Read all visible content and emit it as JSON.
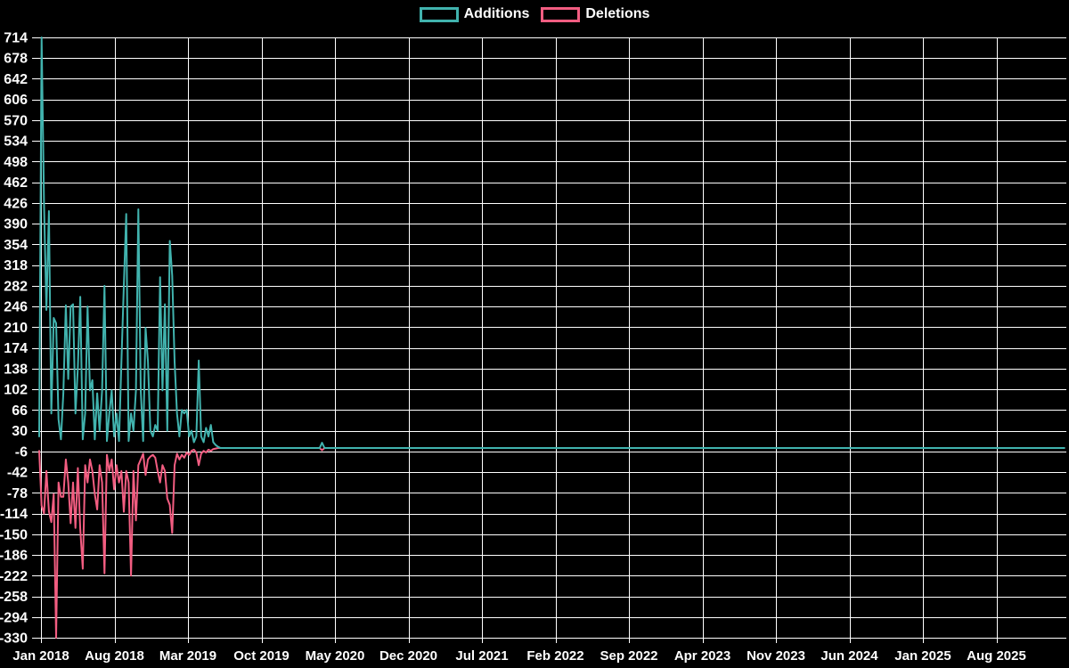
{
  "chart_data": {
    "type": "line",
    "title": "",
    "legend": [
      "Additions",
      "Deletions"
    ],
    "legend_position": "top-center",
    "background": "#000000",
    "grid": true,
    "colors": {
      "additions": "#41b3ae",
      "deletions": "#f25d81",
      "grid": "#ffffff",
      "text": "#ffffff"
    },
    "ylim": [
      -330,
      714
    ],
    "y_tick_step": 36,
    "y_ticks": [
      714,
      678,
      642,
      606,
      570,
      534,
      498,
      462,
      426,
      390,
      354,
      318,
      282,
      246,
      210,
      174,
      138,
      102,
      66,
      30,
      -6,
      -42,
      -78,
      -114,
      -150,
      -186,
      -222,
      -258,
      -294,
      -330
    ],
    "x_axis_unit": "weeks, starting early Jan 2018; ticks every 7 months",
    "x_ticks": [
      {
        "label": "Jan 2018",
        "month": 0
      },
      {
        "label": "Aug 2018",
        "month": 7
      },
      {
        "label": "Mar 2019",
        "month": 14
      },
      {
        "label": "Oct 2019",
        "month": 21
      },
      {
        "label": "May 2020",
        "month": 28
      },
      {
        "label": "Dec 2020",
        "month": 35
      },
      {
        "label": "Jul 2021",
        "month": 42
      },
      {
        "label": "Feb 2022",
        "month": 49
      },
      {
        "label": "Sep 2022",
        "month": 56
      },
      {
        "label": "Apr 2023",
        "month": 63
      },
      {
        "label": "Nov 2023",
        "month": 70
      },
      {
        "label": "Jun 2024",
        "month": 77
      },
      {
        "label": "Jan 2025",
        "month": 84
      },
      {
        "label": "Aug 2025",
        "month": 91
      }
    ],
    "series": [
      {
        "name": "Deletions",
        "color_key": "deletions",
        "points": [
          [
            0,
            -5
          ],
          [
            1,
            -100
          ],
          [
            2,
            -114
          ],
          [
            3,
            -40
          ],
          [
            4,
            -110
          ],
          [
            5,
            -129
          ],
          [
            6,
            -80
          ],
          [
            7,
            -330
          ],
          [
            8,
            -60
          ],
          [
            9,
            -85
          ],
          [
            10,
            -85
          ],
          [
            11,
            -20
          ],
          [
            12,
            -60
          ],
          [
            13,
            -131
          ],
          [
            14,
            -60
          ],
          [
            15,
            -139
          ],
          [
            16,
            -35
          ],
          [
            17,
            -141
          ],
          [
            18,
            -210
          ],
          [
            19,
            -30
          ],
          [
            20,
            -60
          ],
          [
            21,
            -20
          ],
          [
            22,
            -40
          ],
          [
            23,
            -80
          ],
          [
            24,
            -107
          ],
          [
            25,
            -30
          ],
          [
            26,
            -60
          ],
          [
            27,
            -218
          ],
          [
            28,
            -12
          ],
          [
            29,
            -40
          ],
          [
            30,
            -20
          ],
          [
            31,
            -72
          ],
          [
            32,
            -30
          ],
          [
            33,
            -60
          ],
          [
            34,
            -40
          ],
          [
            35,
            -111
          ],
          [
            36,
            -40
          ],
          [
            37,
            -60
          ],
          [
            38,
            -222
          ],
          [
            39,
            -40
          ],
          [
            40,
            -126
          ],
          [
            41,
            -30
          ],
          [
            42,
            -20
          ],
          [
            43,
            -10
          ],
          [
            44,
            -47
          ],
          [
            45,
            -20
          ],
          [
            46,
            -15
          ],
          [
            47,
            -12
          ],
          [
            48,
            -17
          ],
          [
            49,
            -40
          ],
          [
            50,
            -60
          ],
          [
            51,
            -30
          ],
          [
            52,
            -40
          ],
          [
            53,
            -88
          ],
          [
            54,
            -99
          ],
          [
            55,
            -148
          ],
          [
            56,
            -30
          ],
          [
            57,
            -10
          ],
          [
            58,
            -20
          ],
          [
            59,
            -12
          ],
          [
            60,
            -17
          ],
          [
            61,
            -8
          ],
          [
            62,
            -12
          ],
          [
            63,
            -5
          ],
          [
            64,
            -3
          ],
          [
            65,
            -8
          ],
          [
            66,
            -30
          ],
          [
            67,
            -10
          ],
          [
            68,
            -5
          ],
          [
            69,
            -8
          ],
          [
            70,
            -3
          ],
          [
            71,
            -5
          ],
          [
            72,
            -2
          ],
          [
            73,
            -1
          ],
          [
            74,
            0
          ],
          [
            116,
            0
          ],
          [
            117,
            -4
          ],
          [
            118,
            0
          ],
          [
            424,
            0
          ]
        ]
      },
      {
        "name": "Additions",
        "color_key": "additions",
        "points": [
          [
            0,
            20
          ],
          [
            1,
            714
          ],
          [
            2,
            426
          ],
          [
            3,
            240
          ],
          [
            4,
            412
          ],
          [
            5,
            60
          ],
          [
            6,
            226
          ],
          [
            7,
            217
          ],
          [
            8,
            50
          ],
          [
            9,
            15
          ],
          [
            10,
            95
          ],
          [
            11,
            248
          ],
          [
            12,
            120
          ],
          [
            13,
            246
          ],
          [
            14,
            250
          ],
          [
            15,
            60
          ],
          [
            16,
            140
          ],
          [
            17,
            263
          ],
          [
            18,
            15
          ],
          [
            19,
            60
          ],
          [
            20,
            246
          ],
          [
            21,
            100
          ],
          [
            22,
            118
          ],
          [
            23,
            15
          ],
          [
            24,
            95
          ],
          [
            25,
            30
          ],
          [
            26,
            100
          ],
          [
            27,
            282
          ],
          [
            28,
            12
          ],
          [
            29,
            60
          ],
          [
            30,
            100
          ],
          [
            31,
            20
          ],
          [
            32,
            60
          ],
          [
            33,
            12
          ],
          [
            34,
            150
          ],
          [
            35,
            282
          ],
          [
            36,
            407
          ],
          [
            37,
            12
          ],
          [
            38,
            60
          ],
          [
            39,
            30
          ],
          [
            40,
            100
          ],
          [
            41,
            415
          ],
          [
            42,
            100
          ],
          [
            43,
            12
          ],
          [
            44,
            209
          ],
          [
            45,
            150
          ],
          [
            46,
            30
          ],
          [
            47,
            20
          ],
          [
            48,
            40
          ],
          [
            49,
            30
          ],
          [
            50,
            297
          ],
          [
            51,
            100
          ],
          [
            52,
            250
          ],
          [
            53,
            30
          ],
          [
            54,
            360
          ],
          [
            55,
            300
          ],
          [
            56,
            150
          ],
          [
            57,
            60
          ],
          [
            58,
            20
          ],
          [
            59,
            66
          ],
          [
            60,
            60
          ],
          [
            61,
            66
          ],
          [
            62,
            20
          ],
          [
            63,
            30
          ],
          [
            64,
            10
          ],
          [
            65,
            20
          ],
          [
            66,
            152
          ],
          [
            67,
            20
          ],
          [
            68,
            10
          ],
          [
            69,
            35
          ],
          [
            70,
            20
          ],
          [
            71,
            40
          ],
          [
            72,
            10
          ],
          [
            73,
            5
          ],
          [
            74,
            2
          ],
          [
            75,
            0
          ],
          [
            116,
            0
          ],
          [
            117,
            9
          ],
          [
            118,
            0
          ],
          [
            424,
            0
          ]
        ]
      }
    ]
  }
}
